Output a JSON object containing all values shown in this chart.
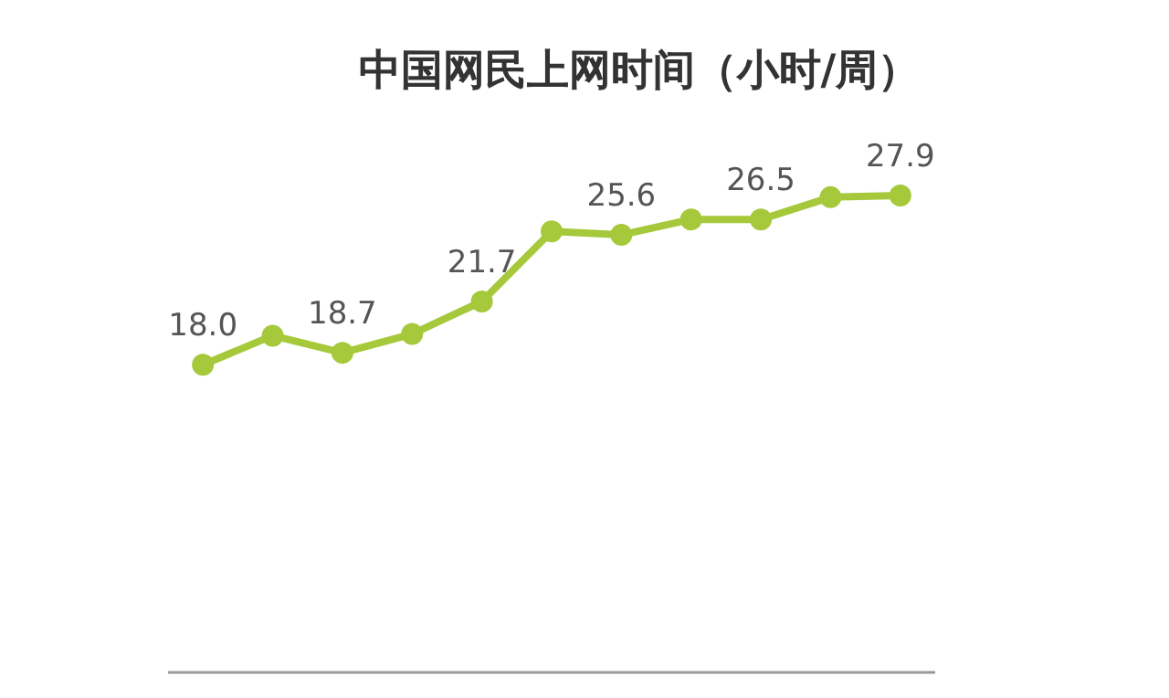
{
  "chart_data": {
    "type": "line",
    "title": "中国网民上网时间（小时/周）",
    "categories": [
      null,
      null,
      null,
      null,
      null,
      null,
      null,
      null,
      null,
      null,
      null
    ],
    "series": [
      {
        "color": "#a5c93a",
        "values": [
          18.0,
          19.7,
          18.7,
          19.8,
          21.7,
          25.8,
          25.6,
          26.5,
          26.5,
          27.8,
          27.9
        ],
        "value_labels": [
          "18.0",
          null,
          "18.7",
          null,
          "21.7",
          null,
          "25.6",
          null,
          "26.5",
          null,
          "27.9"
        ]
      }
    ],
    "marker": "circle",
    "line_style": "solid"
  }
}
